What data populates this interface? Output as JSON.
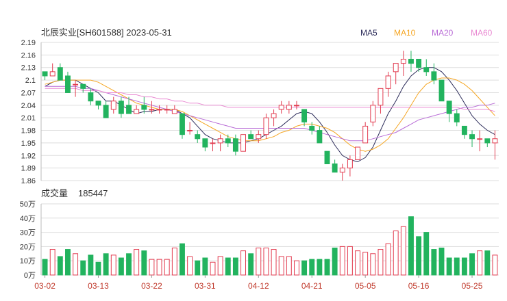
{
  "chart_data": {
    "type": "candlestick",
    "title": "北辰实业[SH601588] 2023-05-31",
    "legend": [
      {
        "name": "MA5",
        "color": "#2c2c5a"
      },
      {
        "name": "MA10",
        "color": "#f5a623"
      },
      {
        "name": "MA20",
        "color": "#b86bd6"
      },
      {
        "name": "MA60",
        "color": "#e98ad2"
      }
    ],
    "price_axis": {
      "ticks": [
        "2.19",
        "2.16",
        "2.13",
        "2.1",
        "2.07",
        "2.04",
        "2.01",
        "1.98",
        "1.95",
        "1.92",
        "1.89",
        "1.86"
      ],
      "ylim": [
        1.86,
        2.19
      ]
    },
    "x_ticks": [
      {
        "label": "03-02",
        "index": 0
      },
      {
        "label": "03-13",
        "index": 7
      },
      {
        "label": "03-22",
        "index": 14
      },
      {
        "label": "03-31",
        "index": 21
      },
      {
        "label": "04-12",
        "index": 28
      },
      {
        "label": "04-21",
        "index": 35
      },
      {
        "label": "05-05",
        "index": 42
      },
      {
        "label": "05-16",
        "index": 49
      },
      {
        "label": "05-25",
        "index": 56
      }
    ],
    "ohlc": [
      [
        2.12,
        2.12,
        2.1,
        2.11
      ],
      [
        2.11,
        2.14,
        2.11,
        2.12
      ],
      [
        2.13,
        2.14,
        2.1,
        2.1
      ],
      [
        2.11,
        2.12,
        2.07,
        2.07
      ],
      [
        2.09,
        2.1,
        2.06,
        2.09
      ],
      [
        2.09,
        2.09,
        2.07,
        2.08
      ],
      [
        2.07,
        2.08,
        2.04,
        2.05
      ],
      [
        2.05,
        2.05,
        2.03,
        2.04
      ],
      [
        2.04,
        2.05,
        2.01,
        2.01
      ],
      [
        2.03,
        2.06,
        2.02,
        2.05
      ],
      [
        2.05,
        2.06,
        2.01,
        2.02
      ],
      [
        2.04,
        2.06,
        2.02,
        2.02
      ],
      [
        2.02,
        2.04,
        2.02,
        2.03
      ],
      [
        2.04,
        2.06,
        2.02,
        2.03
      ],
      [
        2.03,
        2.05,
        2.02,
        2.03
      ],
      [
        2.03,
        2.04,
        2.02,
        2.03
      ],
      [
        2.03,
        2.04,
        2.02,
        2.03
      ],
      [
        2.02,
        2.04,
        2.02,
        2.03
      ],
      [
        2.02,
        2.02,
        1.96,
        1.97
      ],
      [
        1.98,
        2.0,
        1.97,
        1.98
      ],
      [
        1.97,
        1.98,
        1.95,
        1.96
      ],
      [
        1.96,
        1.96,
        1.93,
        1.94
      ],
      [
        1.95,
        1.96,
        1.93,
        1.95
      ],
      [
        1.95,
        1.97,
        1.93,
        1.96
      ],
      [
        1.96,
        1.97,
        1.94,
        1.95
      ],
      [
        1.96,
        1.97,
        1.92,
        1.93
      ],
      [
        1.93,
        1.97,
        1.93,
        1.97
      ],
      [
        1.97,
        1.98,
        1.96,
        1.96
      ],
      [
        1.96,
        1.98,
        1.95,
        1.97
      ],
      [
        1.97,
        2.02,
        1.96,
        2.01
      ],
      [
        2.01,
        2.03,
        1.99,
        2.02
      ],
      [
        2.03,
        2.05,
        2.02,
        2.04
      ],
      [
        2.03,
        2.05,
        2.02,
        2.04
      ],
      [
        2.04,
        2.05,
        2.03,
        2.04
      ],
      [
        2.03,
        2.03,
        1.99,
        2.0
      ],
      [
        1.99,
        2.0,
        1.97,
        1.98
      ],
      [
        1.98,
        1.99,
        1.95,
        1.95
      ],
      [
        1.93,
        1.93,
        1.9,
        1.9
      ],
      [
        1.9,
        1.91,
        1.88,
        1.88
      ],
      [
        1.88,
        1.9,
        1.86,
        1.89
      ],
      [
        1.89,
        1.92,
        1.87,
        1.91
      ],
      [
        1.91,
        1.94,
        1.91,
        1.94
      ],
      [
        1.95,
        2.0,
        1.95,
        1.99
      ],
      [
        2.0,
        2.05,
        1.99,
        2.04
      ],
      [
        2.04,
        2.08,
        2.02,
        2.08
      ],
      [
        2.08,
        2.12,
        2.06,
        2.11
      ],
      [
        2.12,
        2.14,
        2.09,
        2.14
      ],
      [
        2.14,
        2.17,
        2.11,
        2.15
      ],
      [
        2.15,
        2.17,
        2.12,
        2.14
      ],
      [
        2.15,
        2.15,
        2.12,
        2.13
      ],
      [
        2.13,
        2.15,
        2.11,
        2.12
      ],
      [
        2.12,
        2.14,
        2.09,
        2.1
      ],
      [
        2.1,
        2.1,
        2.05,
        2.05
      ],
      [
        2.05,
        2.05,
        2.0,
        2.02
      ],
      [
        2.02,
        2.03,
        1.99,
        2.0
      ],
      [
        1.99,
        1.99,
        1.96,
        1.97
      ],
      [
        1.97,
        1.98,
        1.94,
        1.96
      ],
      [
        1.96,
        1.98,
        1.93,
        1.96
      ],
      [
        1.96,
        1.96,
        1.94,
        1.95
      ],
      [
        1.95,
        1.98,
        1.91,
        1.96
      ]
    ],
    "ma": {
      "MA5": [
        2.085,
        2.095,
        2.1,
        2.1,
        2.1,
        2.09,
        2.08,
        2.07,
        2.05,
        2.05,
        2.04,
        2.03,
        2.02,
        2.025,
        2.025,
        2.03,
        2.03,
        2.03,
        2.02,
        2.01,
        1.99,
        1.97,
        1.96,
        1.955,
        1.95,
        1.95,
        1.95,
        1.955,
        1.96,
        1.97,
        1.98,
        1.99,
        2.005,
        2.02,
        2.025,
        2.02,
        2.0,
        1.975,
        1.945,
        1.92,
        1.91,
        1.905,
        1.915,
        1.94,
        1.98,
        2.02,
        2.05,
        2.085,
        2.11,
        2.125,
        2.13,
        2.13,
        2.12,
        2.1,
        2.075,
        2.045,
        2.015,
        1.995,
        1.98,
        1.97
      ],
      "MA10": [
        2.09,
        2.095,
        2.1,
        2.1,
        2.1,
        2.1,
        2.1,
        2.095,
        2.085,
        2.075,
        2.065,
        2.055,
        2.045,
        2.04,
        2.035,
        2.03,
        2.03,
        2.03,
        2.025,
        2.015,
        2.005,
        1.995,
        1.985,
        1.975,
        1.965,
        1.96,
        1.955,
        1.955,
        1.955,
        1.96,
        1.965,
        1.975,
        1.98,
        1.99,
        1.995,
        1.995,
        1.99,
        1.985,
        1.975,
        1.96,
        1.945,
        1.935,
        1.93,
        1.935,
        1.945,
        1.96,
        1.985,
        2.01,
        2.04,
        2.07,
        2.09,
        2.1,
        2.105,
        2.105,
        2.1,
        2.09,
        2.075,
        2.055,
        2.035,
        2.015
      ],
      "MA20": [
        2.085,
        2.085,
        2.085,
        2.085,
        2.085,
        2.08,
        2.08,
        2.075,
        2.07,
        2.065,
        2.06,
        2.055,
        2.05,
        2.045,
        2.04,
        2.035,
        2.03,
        2.025,
        2.02,
        2.015,
        2.01,
        2.005,
        2.0,
        1.995,
        1.99,
        1.985,
        1.985,
        1.985,
        1.985,
        1.985,
        1.985,
        1.985,
        1.985,
        1.985,
        1.985,
        1.98,
        1.975,
        1.97,
        1.965,
        1.96,
        1.955,
        1.955,
        1.955,
        1.96,
        1.965,
        1.97,
        1.975,
        1.985,
        1.995,
        2.005,
        2.01,
        2.015,
        2.02,
        2.025,
        2.03,
        2.035,
        2.035,
        2.04,
        2.04,
        2.045
      ],
      "MA60": [
        2.08,
        2.08,
        2.08,
        2.08,
        2.08,
        2.075,
        2.075,
        2.075,
        2.07,
        2.07,
        2.07,
        2.065,
        2.065,
        2.06,
        2.06,
        2.055,
        2.055,
        2.05,
        2.05,
        2.045,
        2.045,
        2.04,
        2.04,
        2.04,
        2.035,
        2.035,
        2.035,
        2.035,
        2.035,
        2.035,
        2.035,
        2.035,
        2.035,
        2.035,
        2.035,
        2.035,
        2.035,
        2.035,
        2.035,
        2.035,
        2.035,
        2.035,
        2.035,
        2.035,
        2.035,
        2.035,
        2.035,
        2.035,
        2.035,
        2.035,
        2.035,
        2.035,
        2.035,
        2.035,
        2.035,
        2.03,
        2.03,
        2.03,
        2.03,
        2.025
      ]
    },
    "volume": {
      "label": "成交量",
      "latest": "185447",
      "unit": "万",
      "ticks": [
        "50万",
        "40万",
        "30万",
        "20万",
        "10万",
        "0万"
      ],
      "ylim": [
        0,
        50
      ],
      "values": [
        11,
        18,
        13,
        18,
        15,
        10,
        14,
        9,
        15,
        14,
        12,
        15,
        18,
        17,
        11,
        11,
        11,
        19,
        22,
        13,
        10,
        12,
        9,
        13,
        12,
        12,
        17,
        15,
        19,
        19,
        18,
        13,
        13,
        10,
        10,
        11,
        11,
        11,
        19,
        20,
        20,
        17,
        16,
        15,
        18,
        22,
        31,
        34,
        41,
        27,
        30,
        18,
        19,
        12,
        12,
        12,
        15,
        17,
        17,
        14
      ]
    },
    "colors": {
      "up": "#e23b4f",
      "down": "#22b35e",
      "grid": "#dddddd",
      "date": "#c0392b"
    }
  }
}
